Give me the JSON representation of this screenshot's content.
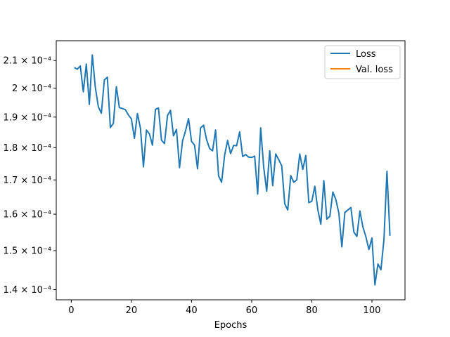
{
  "chart_data": {
    "type": "line",
    "xlabel": "Epochs",
    "ylabel": "",
    "yscale": "log",
    "xlim": [
      -5,
      111
    ],
    "ylim": [
      0.0001375,
      0.0002175
    ],
    "xticks": [
      0,
      20,
      40,
      60,
      80,
      100
    ],
    "yticks": [
      {
        "value": 0.00014,
        "label": "1.4 × 10⁻⁴"
      },
      {
        "value": 0.00015,
        "label": "1.5 × 10⁻⁴"
      },
      {
        "value": 0.00016,
        "label": "1.6 × 10⁻⁴"
      },
      {
        "value": 0.00017,
        "label": "1.7 × 10⁻⁴"
      },
      {
        "value": 0.00018,
        "label": "1.8 × 10⁻⁴"
      },
      {
        "value": 0.00019,
        "label": "1.9 × 10⁻⁴"
      },
      {
        "value": 0.0002,
        "label": "2 × 10⁻⁴"
      },
      {
        "value": 0.00021,
        "label": "2.1 × 10⁻⁴"
      }
    ],
    "grid": false,
    "legend_position": "top-right",
    "series": [
      {
        "name": "Loss",
        "color": "#1f77b4",
        "x": [
          1,
          2,
          3,
          4,
          5,
          6,
          7,
          8,
          9,
          10,
          11,
          12,
          13,
          14,
          15,
          16,
          17,
          18,
          19,
          20,
          21,
          22,
          23,
          24,
          25,
          26,
          27,
          28,
          29,
          30,
          31,
          32,
          33,
          34,
          35,
          36,
          37,
          38,
          39,
          40,
          41,
          42,
          43,
          44,
          45,
          46,
          47,
          48,
          49,
          50,
          51,
          52,
          53,
          54,
          55,
          56,
          57,
          58,
          59,
          60,
          61,
          62,
          63,
          64,
          65,
          66,
          67,
          68,
          69,
          70,
          71,
          72,
          73,
          74,
          75,
          76,
          77,
          78,
          79,
          80,
          81,
          82,
          83,
          84,
          85,
          86,
          87,
          88,
          89,
          90,
          91,
          92,
          93,
          94,
          95,
          96,
          97,
          98,
          99,
          100,
          101,
          102,
          103,
          104,
          105,
          106
        ],
        "values": [
          0.0002074,
          0.0002068,
          0.000208,
          0.0001987,
          0.0002087,
          0.0001943,
          0.0002121,
          0.0002002,
          0.0001935,
          0.0001913,
          0.0002029,
          0.0002039,
          0.0001865,
          0.0001879,
          0.0002005,
          0.0001932,
          0.0001929,
          0.0001925,
          0.0001907,
          0.0001894,
          0.000183,
          0.0001912,
          0.0001863,
          0.000174,
          0.0001857,
          0.0001844,
          0.0001808,
          0.0001926,
          0.0001931,
          0.0001824,
          0.0001813,
          0.0001905,
          0.0001923,
          0.0001838,
          0.0001859,
          0.0001737,
          0.0001821,
          0.0001854,
          0.0001895,
          0.000182,
          0.0001808,
          0.0001734,
          0.0001864,
          0.0001873,
          0.0001826,
          0.0001797,
          0.000179,
          0.0001857,
          0.0001712,
          0.0001693,
          0.0001776,
          0.0001823,
          0.0001781,
          0.0001807,
          0.0001806,
          0.0001851,
          0.0001772,
          0.0001778,
          0.000177,
          0.0001769,
          0.0001773,
          0.0001658,
          0.0001864,
          0.0001739,
          0.0001666,
          0.000179,
          0.0001683,
          0.000178,
          0.0001762,
          0.0001743,
          0.000163,
          0.0001612,
          0.0001713,
          0.0001693,
          0.00017,
          0.000178,
          0.0001732,
          0.0001775,
          0.0001633,
          0.0001637,
          0.0001681,
          0.0001613,
          0.0001572,
          0.0001698,
          0.0001586,
          0.0001594,
          0.0001664,
          0.0001642,
          0.0001603,
          0.000151,
          0.0001605,
          0.0001612,
          0.0001619,
          0.000155,
          0.0001538,
          0.0001609,
          0.0001564,
          0.0001537,
          0.0001503,
          0.0001534,
          0.0001412,
          0.0001465,
          0.000145,
          0.000153,
          0.0001726,
          0.000154
        ]
      },
      {
        "name": "Val. loss",
        "color": "#ff7f0e",
        "x": [],
        "values": []
      }
    ]
  }
}
